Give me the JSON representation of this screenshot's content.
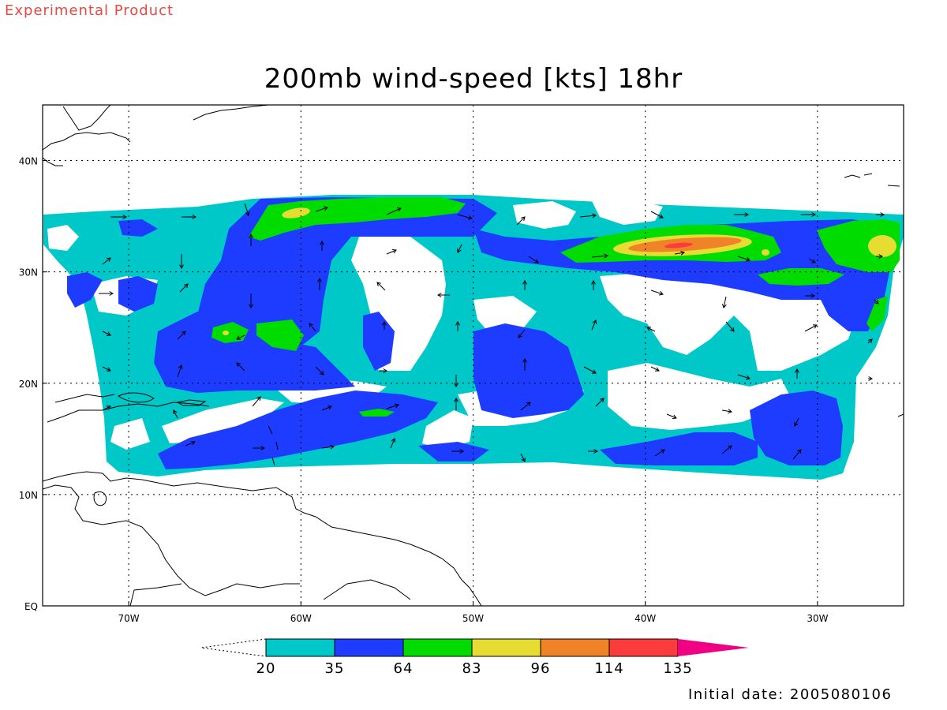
{
  "header": {
    "experimental_label": "Experimental Product",
    "title": "200mb wind-speed [kts] 18hr",
    "initial_date": "Initial date: 2005080106"
  },
  "axes": {
    "lon_ticks": [
      {
        "lon": -70,
        "label": "70W"
      },
      {
        "lon": -60,
        "label": "60W"
      },
      {
        "lon": -50,
        "label": "50W"
      },
      {
        "lon": -40,
        "label": "40W"
      },
      {
        "lon": -30,
        "label": "30W"
      }
    ],
    "lat_ticks": [
      {
        "lat": 0,
        "label": "EQ"
      },
      {
        "lat": 10,
        "label": "10N"
      },
      {
        "lat": 20,
        "label": "20N"
      },
      {
        "lat": 30,
        "label": "30N"
      },
      {
        "lat": 40,
        "label": "40N"
      }
    ],
    "lon_range": [
      -75,
      -25
    ],
    "lat_range": [
      0,
      45
    ],
    "grid": true
  },
  "colorbar": {
    "levels": [
      "20",
      "35",
      "64",
      "83",
      "96",
      "114",
      "135"
    ],
    "colors": [
      "#00c8c8",
      "#1e3cff",
      "#00dc00",
      "#e6dc32",
      "#f08228",
      "#fa3c3c",
      "#f00082"
    ],
    "under_color": "#ffffff"
  },
  "palette": {
    "c20": "#00c8c8",
    "c35": "#1e3cff",
    "c64": "#00dc00",
    "c83": "#e6dc32",
    "c96": "#f08228",
    "c114": "#fa3c3c"
  }
}
